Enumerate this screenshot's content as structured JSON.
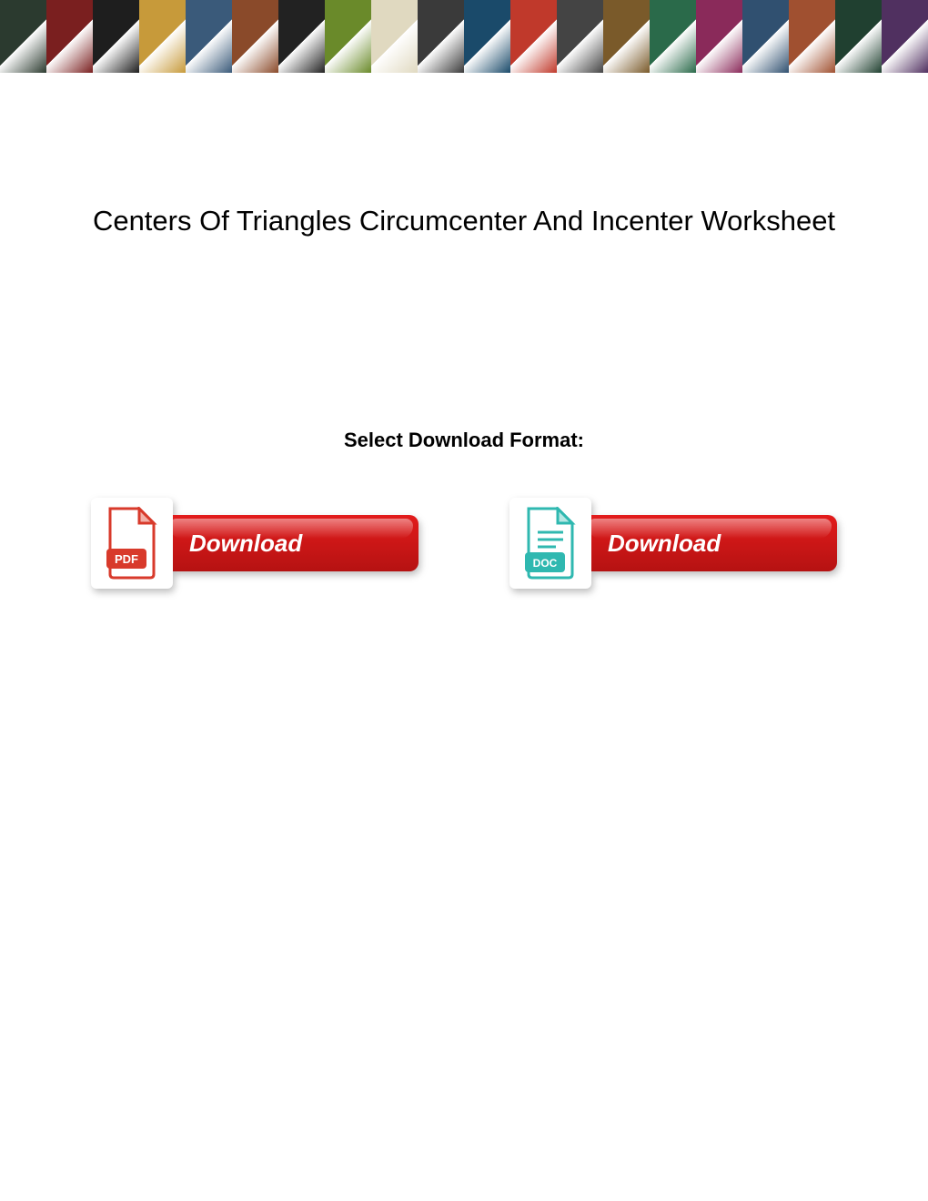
{
  "banner": {
    "tile_count": 20,
    "tile_colors": [
      "#2b3a2f",
      "#7a1f1f",
      "#1e1e1e",
      "#c79a3a",
      "#3a5a7a",
      "#8a4a2a",
      "#222",
      "#6a8a2a",
      "#e0d9c0",
      "#3a3a3a",
      "#1a4a6a",
      "#c0392b",
      "#444",
      "#7a5a2a",
      "#2a6a4a",
      "#8a2a5a",
      "#305070",
      "#a05030",
      "#204030",
      "#503060"
    ]
  },
  "title": "Centers Of Triangles Circumcenter And Incenter Worksheet",
  "format_label": "Select Download Format:",
  "downloads": {
    "pdf": {
      "badge_text": "PDF",
      "badge_color": "#d83a2b",
      "button_text": "Download",
      "button_bg": "#e21b1b"
    },
    "doc": {
      "badge_text": "DOC",
      "badge_color": "#2fb8b0",
      "button_text": "Download",
      "button_bg": "#e21b1b"
    }
  },
  "colors": {
    "page_bg": "#ffffff",
    "title_color": "#000000",
    "button_text": "#ffffff"
  }
}
